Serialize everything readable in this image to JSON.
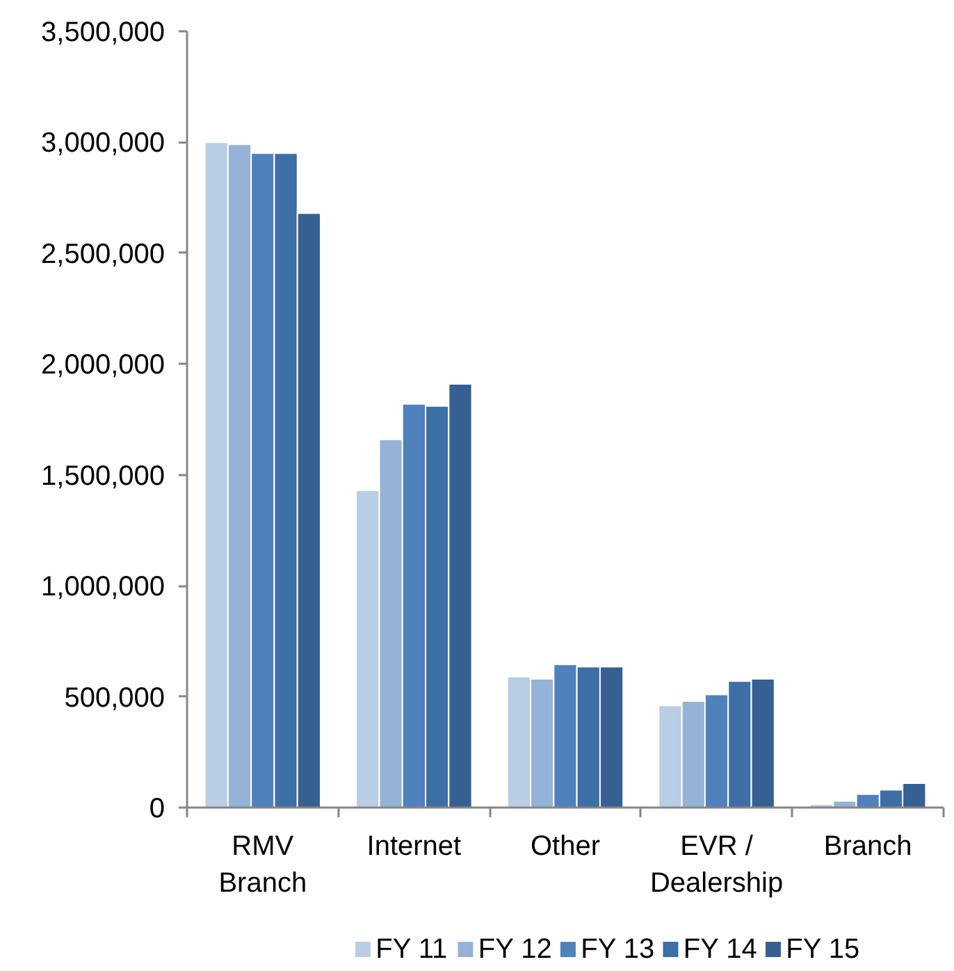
{
  "chart_data": {
    "type": "bar",
    "categories": [
      "RMV Branch",
      "Internet",
      "Other",
      "EVR / Dealership",
      "Branch"
    ],
    "series": [
      {
        "name": "FY 11",
        "color": "#b9cde5",
        "values": [
          3000000,
          1430000,
          590000,
          460000,
          15000
        ]
      },
      {
        "name": "FY 12",
        "color": "#95b3d7",
        "values": [
          2990000,
          1660000,
          580000,
          480000,
          30000
        ]
      },
      {
        "name": "FY 13",
        "color": "#4f81bd",
        "values": [
          2950000,
          1820000,
          645000,
          510000,
          60000
        ]
      },
      {
        "name": "FY 14",
        "color": "#3e6ea6",
        "values": [
          2950000,
          1810000,
          635000,
          570000,
          80000
        ]
      },
      {
        "name": "FY 15",
        "color": "#366092",
        "values": [
          2680000,
          1910000,
          635000,
          580000,
          110000
        ]
      }
    ],
    "ylim": [
      0,
      3500000
    ],
    "yticks": [
      0,
      {
        "value": 500000,
        "label": "500,000"
      },
      {
        "value": 1000000,
        "label": "1,000,000"
      },
      {
        "value": 1500000,
        "label": "1,500,000"
      },
      {
        "value": 2000000,
        "label": "2,000,000"
      },
      {
        "value": 2500000,
        "label": "2,500,000"
      },
      {
        "value": 3000000,
        "label": "3,000,000"
      },
      {
        "value": 3500000,
        "label": "3,500,000"
      }
    ],
    "legend": "bottom"
  }
}
